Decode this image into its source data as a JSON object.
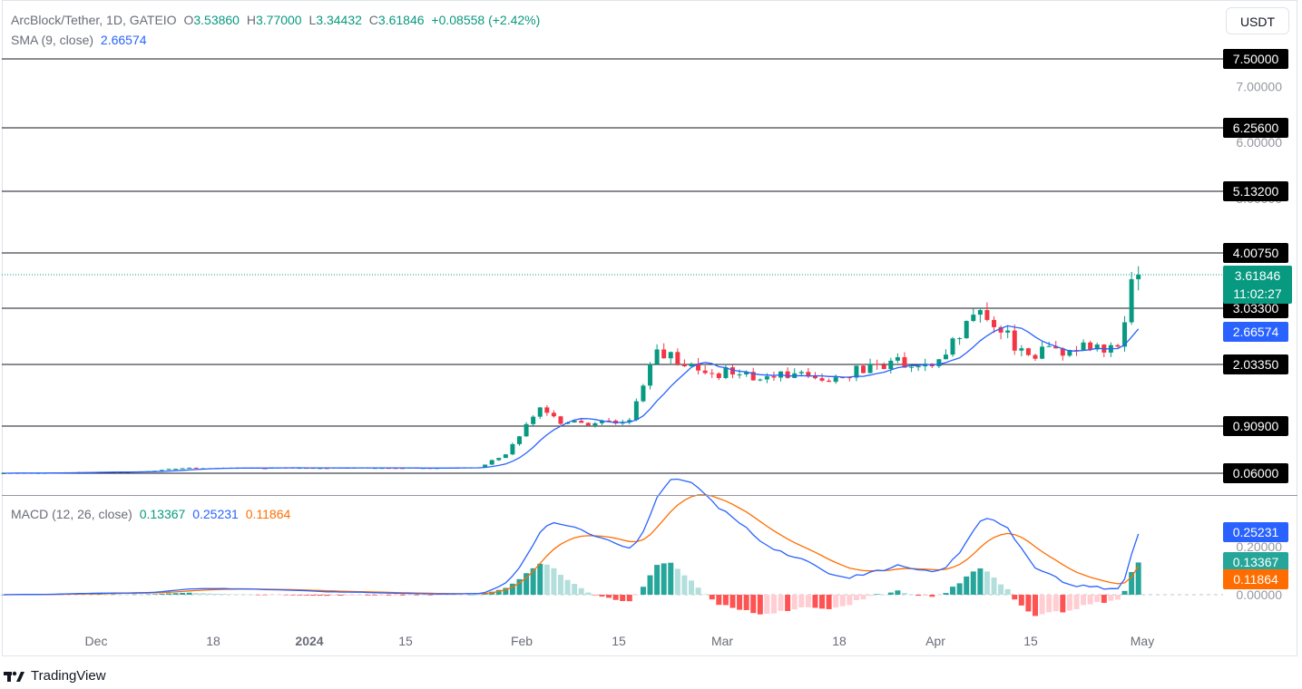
{
  "header": {
    "symbol": "ArcBlock/Tether, 1D, GATEIO",
    "open_label": "O",
    "open": "3.53860",
    "high_label": "H",
    "high": "3.77000",
    "low_label": "L",
    "low": "3.34432",
    "close_label": "C",
    "close": "3.61846",
    "change": "+0.08558 (+2.42%)",
    "sma_label": "SMA (9, close)",
    "sma_value": "2.66574",
    "macd_label": "MACD (12, 26, close)",
    "macd_hist": "0.13367",
    "macd_line": "0.25231",
    "macd_signal": "0.11864",
    "currency_button": "USDT"
  },
  "branding": {
    "name": "TradingView",
    "icon": "tradingview-logo-icon"
  },
  "colors": {
    "up": "#089981",
    "down": "#f23645",
    "sma": "#2962ff",
    "macd_line": "#2962ff",
    "signal_line": "#ff6d00",
    "hist_up_strong": "#26a69a",
    "hist_up_weak": "#b2dfdb",
    "hist_down_strong": "#ff5252",
    "hist_down_weak": "#ffcdd2"
  },
  "chart_data": {
    "type": "candlestick",
    "price_axis": {
      "ticks": [
        "7.00000",
        "6.00000",
        "5.00000"
      ],
      "horizontal_levels": [
        "7.50000",
        "6.25600",
        "5.13200",
        "4.00750",
        "3.03300",
        "2.03350",
        "0.90900",
        "0.06000"
      ],
      "current_price": "3.61846",
      "countdown": "11:02:27",
      "sma_tag": "2.66574"
    },
    "time_axis": {
      "ticks": [
        "Dec",
        "18",
        "2024",
        "15",
        "Feb",
        "15",
        "Mar",
        "18",
        "Apr",
        "15",
        "May"
      ]
    },
    "macd_axis": {
      "ticks": [
        "0.20000",
        "0.00000"
      ],
      "macd_tag": "0.25231",
      "hist_tag": "0.13367",
      "signal_tag": "0.11864"
    },
    "close_keypoints": [
      {
        "date": "2023-11-20",
        "close": 0.06
      },
      {
        "date": "2023-12-10",
        "close": 0.09
      },
      {
        "date": "2023-12-16",
        "close": 0.15
      },
      {
        "date": "2024-01-28",
        "close": 0.16
      },
      {
        "date": "2024-02-01",
        "close": 0.4
      },
      {
        "date": "2024-02-06",
        "close": 1.25
      },
      {
        "date": "2024-02-09",
        "close": 0.95
      },
      {
        "date": "2024-02-19",
        "close": 1.02
      },
      {
        "date": "2024-02-23",
        "close": 2.3
      },
      {
        "date": "2024-02-27",
        "close": 2.0
      },
      {
        "date": "2024-03-05",
        "close": 1.85
      },
      {
        "date": "2024-03-20",
        "close": 1.8
      },
      {
        "date": "2024-03-28",
        "close": 2.1
      },
      {
        "date": "2024-04-03",
        "close": 2.0
      },
      {
        "date": "2024-04-07",
        "close": 2.5
      },
      {
        "date": "2024-04-10",
        "close": 3.0
      },
      {
        "date": "2024-04-13",
        "close": 2.6
      },
      {
        "date": "2024-04-17",
        "close": 2.2
      },
      {
        "date": "2024-04-26",
        "close": 2.3
      },
      {
        "date": "2024-04-30",
        "close": 2.35
      },
      {
        "date": "2024-05-02",
        "close": 3.54
      },
      {
        "date": "2024-05-03",
        "close": 3.62
      }
    ],
    "last_candle": {
      "open": 3.5386,
      "high": 3.77,
      "low": 3.34432,
      "close": 3.61846
    },
    "sma_last": 2.66574,
    "macd_last": {
      "macd": 0.25231,
      "signal": 0.11864,
      "hist": 0.13367
    }
  }
}
